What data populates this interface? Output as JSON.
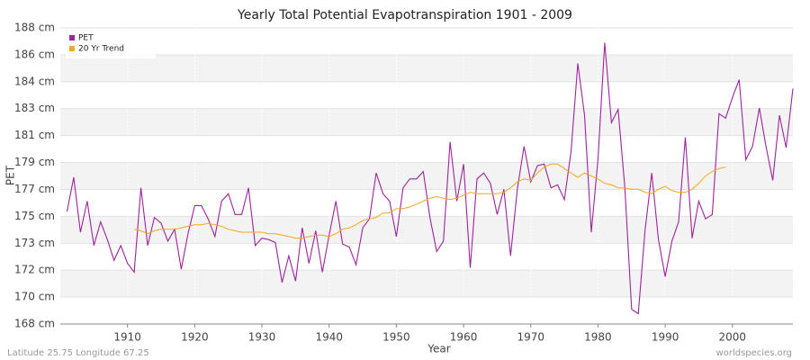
{
  "chart_data": {
    "type": "line",
    "title": "Yearly Total Potential Evapotranspiration 1901 - 2009",
    "x_label": "Year",
    "y_label": "PET",
    "footer_left": "Latitude 25.75 Longitude 67.25",
    "footer_right": "worldspecies.org",
    "legend_position": "top-left",
    "grid": true,
    "x": [
      1901,
      1902,
      1903,
      1904,
      1905,
      1906,
      1907,
      1908,
      1909,
      1910,
      1911,
      1912,
      1913,
      1914,
      1915,
      1916,
      1917,
      1918,
      1919,
      1920,
      1921,
      1922,
      1923,
      1924,
      1925,
      1926,
      1927,
      1928,
      1929,
      1930,
      1931,
      1932,
      1933,
      1934,
      1935,
      1936,
      1937,
      1938,
      1939,
      1940,
      1941,
      1942,
      1943,
      1944,
      1945,
      1946,
      1947,
      1948,
      1949,
      1950,
      1951,
      1952,
      1953,
      1954,
      1955,
      1956,
      1957,
      1958,
      1959,
      1960,
      1961,
      1962,
      1963,
      1964,
      1965,
      1966,
      1967,
      1968,
      1969,
      1970,
      1971,
      1972,
      1973,
      1974,
      1975,
      1976,
      1977,
      1978,
      1979,
      1980,
      1981,
      1982,
      1983,
      1984,
      1985,
      1986,
      1987,
      1988,
      1989,
      1990,
      1991,
      1992,
      1993,
      1994,
      1995,
      1996,
      1997,
      1998,
      1999,
      2000,
      2001,
      2002,
      2003,
      2004,
      2005,
      2006,
      2007,
      2008,
      2009
    ],
    "series": [
      {
        "name": "PET",
        "color": "#a0229e",
        "values": [
          175.6,
          177.9,
          174.2,
          176.3,
          173.3,
          174.9,
          173.7,
          172.3,
          173.3,
          172.1,
          171.5,
          177.2,
          173.3,
          175.2,
          174.8,
          173.6,
          174.4,
          171.7,
          174.1,
          176.0,
          176.0,
          175.1,
          173.9,
          176.3,
          176.8,
          175.4,
          175.4,
          177.2,
          173.3,
          173.8,
          173.7,
          173.5,
          170.8,
          172.6,
          170.9,
          174.5,
          172.1,
          174.3,
          171.5,
          174.0,
          176.3,
          173.4,
          173.2,
          172.0,
          174.5,
          175.1,
          178.2,
          176.8,
          176.3,
          173.9,
          177.2,
          177.8,
          177.8,
          178.3,
          175.2,
          172.9,
          173.6,
          180.3,
          176.3,
          178.8,
          171.8,
          177.8,
          178.2,
          177.5,
          175.4,
          177.1,
          172.6,
          177.1,
          180.0,
          177.6,
          178.7,
          178.8,
          177.2,
          177.4,
          176.4,
          179.7,
          185.6,
          182.1,
          174.2,
          179.1,
          187.0,
          181.6,
          182.5,
          177.2,
          169.0,
          168.7,
          174.3,
          178.2,
          173.7,
          171.2,
          173.6,
          174.9,
          180.6,
          173.8,
          176.3,
          175.1,
          175.4,
          182.2,
          181.9,
          183.3,
          184.5,
          179.1,
          180.0,
          182.6,
          180.0,
          177.7,
          182.1,
          179.9,
          183.9
        ]
      },
      {
        "name": "20 Yr Trend",
        "color": "#f5a623",
        "values": [
          null,
          null,
          null,
          null,
          null,
          null,
          null,
          null,
          null,
          null,
          174.4,
          174.3,
          174.1,
          174.3,
          174.4,
          174.4,
          174.4,
          174.5,
          174.6,
          174.7,
          174.7,
          174.8,
          174.7,
          174.6,
          174.4,
          174.3,
          174.2,
          174.2,
          174.2,
          174.2,
          174.1,
          174.1,
          174.0,
          173.9,
          173.8,
          173.8,
          173.9,
          174.0,
          174.0,
          173.9,
          174.1,
          174.4,
          174.5,
          174.7,
          175.0,
          175.1,
          175.2,
          175.5,
          175.5,
          175.8,
          175.8,
          175.9,
          176.1,
          176.3,
          176.5,
          176.6,
          176.5,
          176.4,
          176.5,
          176.7,
          176.9,
          176.8,
          176.8,
          176.8,
          176.8,
          176.9,
          177.2,
          177.6,
          177.8,
          177.7,
          178.2,
          178.6,
          178.8,
          178.8,
          178.5,
          178.2,
          177.9,
          178.2,
          178.0,
          177.8,
          177.5,
          177.4,
          177.2,
          177.2,
          177.1,
          177.1,
          176.9,
          176.8,
          177.1,
          177.3,
          177.0,
          176.9,
          176.9,
          177.1,
          177.5,
          178.0,
          178.3,
          178.5,
          178.6,
          null,
          null,
          null,
          null,
          null,
          null,
          null,
          null,
          null,
          null
        ]
      }
    ],
    "xlim": [
      1900,
      2009
    ],
    "xticks": [
      1910,
      1920,
      1930,
      1940,
      1950,
      1960,
      1970,
      1980,
      1990,
      2000
    ],
    "ylim": [
      168,
      188
    ],
    "yticks": [
      {
        "value": 168,
        "label": "168 cm"
      },
      {
        "value": 169.82,
        "label": "170 cm"
      },
      {
        "value": 171.64,
        "label": "172 cm"
      },
      {
        "value": 173.45,
        "label": "173 cm"
      },
      {
        "value": 175.27,
        "label": "175 cm"
      },
      {
        "value": 177.09,
        "label": "177 cm"
      },
      {
        "value": 178.91,
        "label": "179 cm"
      },
      {
        "value": 180.73,
        "label": "181 cm"
      },
      {
        "value": 182.55,
        "label": "183 cm"
      },
      {
        "value": 184.36,
        "label": "184 cm"
      },
      {
        "value": 186.18,
        "label": "186 cm"
      },
      {
        "value": 188,
        "label": "188 cm"
      }
    ]
  }
}
